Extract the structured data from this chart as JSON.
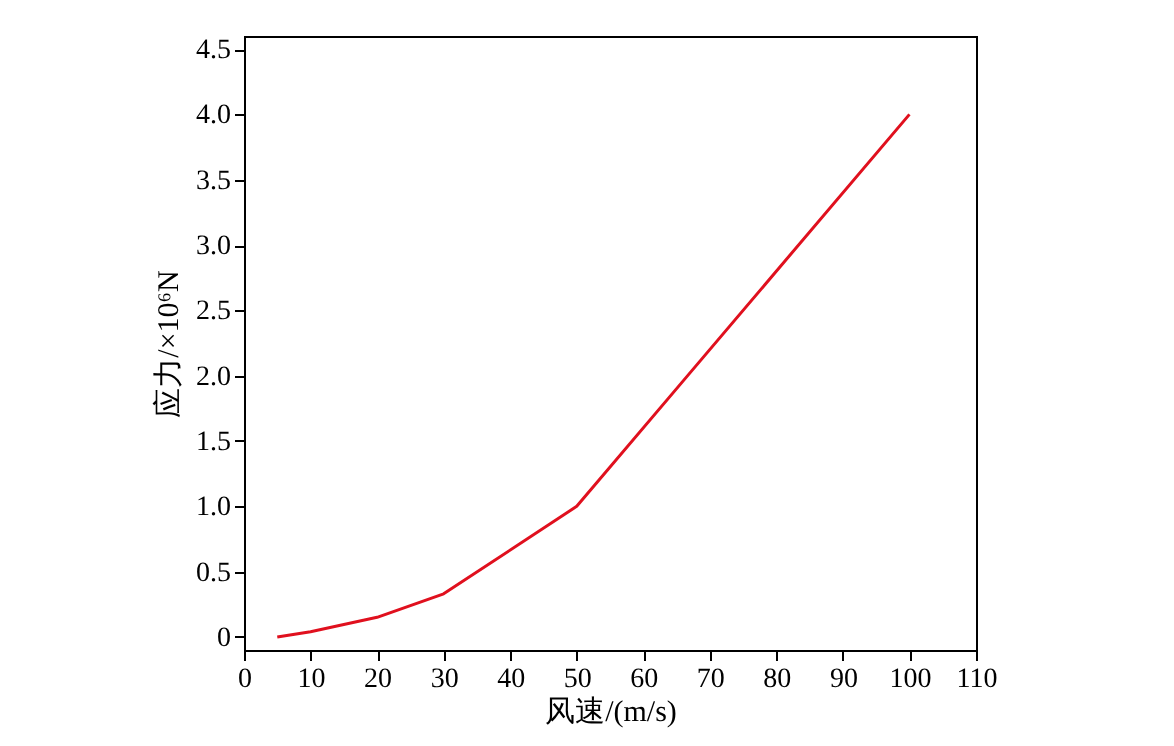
{
  "chart_data": {
    "type": "line",
    "xlabel": "风速/(m/s)",
    "ylabel": "应力/×10⁶N",
    "x": [
      5,
      10,
      20,
      30,
      50,
      66,
      100
    ],
    "series": [
      {
        "color": "#e0101e",
        "values": [
          0,
          0.04,
          0.15,
          0.33,
          1.0,
          1.96,
          4.0
        ]
      }
    ],
    "xlim": [
      0,
      110
    ],
    "xticks": [
      0,
      10,
      20,
      30,
      40,
      50,
      60,
      70,
      80,
      90,
      100,
      110
    ],
    "ylim": [
      -0.1,
      4.6
    ],
    "yticks": [
      0,
      0.5,
      {
        "value": 1,
        "label": "1.0"
      },
      1.5,
      {
        "value": 2,
        "label": "2.0"
      },
      2.5,
      {
        "value": 3,
        "label": "3.0"
      },
      3.5,
      {
        "value": 4,
        "label": "4.0"
      },
      4.5
    ],
    "grid": false,
    "marker": "none",
    "line_style": "solid"
  }
}
